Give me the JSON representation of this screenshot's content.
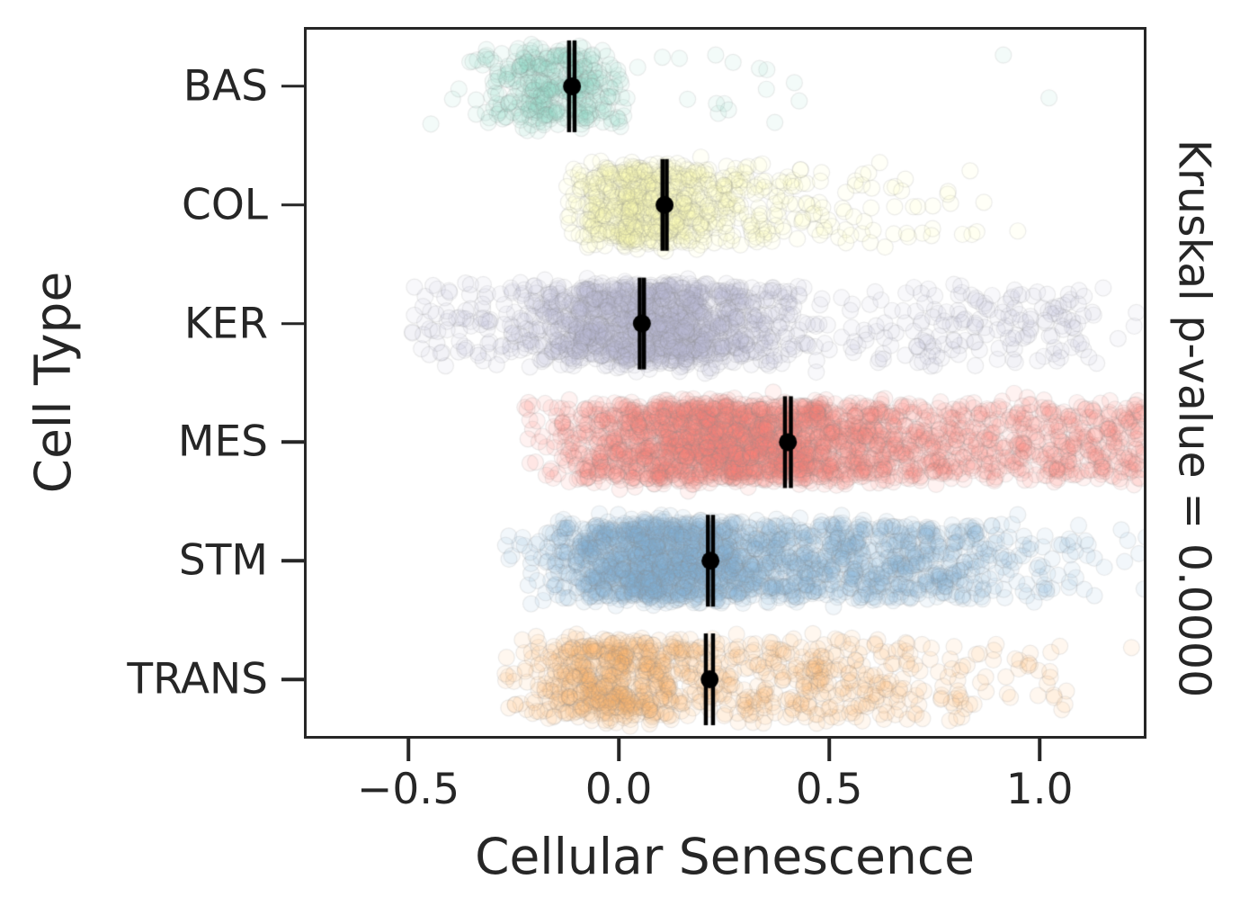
{
  "chart_data": {
    "type": "scatter",
    "subtype": "strip-plot-with-mean-ci",
    "orientation": "horizontal",
    "title": "",
    "xlabel": "Cellular Senescence",
    "ylabel": "Cell Type",
    "right_annotation": "Kruskal p-value = 0.0000",
    "xlim": [
      -0.748,
      1.254
    ],
    "grid": false,
    "legend": "none",
    "xticks": [
      {
        "value": -0.5,
        "label": "−0.5"
      },
      {
        "value": 0.0,
        "label": "0.0"
      },
      {
        "value": 0.5,
        "label": "0.5"
      },
      {
        "value": 1.0,
        "label": "1.0"
      }
    ],
    "categories": [
      "BAS",
      "COL",
      "KER",
      "MES",
      "STM",
      "TRANS"
    ],
    "point_style": {
      "radius": 9,
      "alpha": 0.1,
      "edge_color": "#888888",
      "edge_alpha": 0.16,
      "jitter_halfwidth": 42
    },
    "errorbar_style": {
      "color": "#000000",
      "cap_halfheight": 51,
      "cap_linewidth": 4.5,
      "line_width": 3.5,
      "marker_radius": 10
    },
    "series": [
      {
        "name": "BAS",
        "color": "#8dd3c7",
        "mean": -0.111,
        "ci": [
          -0.118,
          -0.105
        ],
        "n": 380,
        "clusters": [
          {
            "kind": "normal",
            "mu": -0.14,
            "sd": 0.105,
            "clip": [
              -0.47,
              0.02
            ],
            "w": 0.95
          },
          {
            "kind": "uniform",
            "a": 0.03,
            "b": 0.45,
            "w": 0.04
          },
          {
            "kind": "uniform",
            "a": 0.9,
            "b": 1.05,
            "w": 0.01
          }
        ]
      },
      {
        "name": "COL",
        "color": "#ffffb3",
        "mean": 0.109,
        "ci": [
          0.104,
          0.114
        ],
        "n": 800,
        "clusters": [
          {
            "kind": "normal",
            "mu": 0.07,
            "sd": 0.1,
            "clip": [
              -0.13,
              0.4
            ],
            "w": 0.78
          },
          {
            "kind": "normal",
            "mu": 0.38,
            "sd": 0.2,
            "clip": [
              0.08,
              0.95
            ],
            "w": 0.22
          }
        ]
      },
      {
        "name": "KER",
        "color": "#bebada",
        "mean": 0.055,
        "ci": [
          0.05,
          0.06
        ],
        "n": 1700,
        "clusters": [
          {
            "kind": "normal",
            "mu": 0.08,
            "sd": 0.16,
            "clip": [
              -0.42,
              0.78
            ],
            "w": 0.86
          },
          {
            "kind": "uniform",
            "a": -0.5,
            "b": -0.3,
            "w": 0.03
          },
          {
            "kind": "normal",
            "mu": 0.85,
            "sd": 0.22,
            "clip": [
              0.55,
              1.25
            ],
            "w": 0.11
          }
        ]
      },
      {
        "name": "MES",
        "color": "#fb8072",
        "mean": 0.402,
        "ci": [
          0.395,
          0.409
        ],
        "n": 2600,
        "clusters": [
          {
            "kind": "normal",
            "mu": 0.28,
            "sd": 0.2,
            "clip": [
              -0.18,
              1.25
            ],
            "w": 0.55
          },
          {
            "kind": "uniform",
            "a": -0.05,
            "b": 1.25,
            "w": 0.43
          },
          {
            "kind": "uniform",
            "a": -0.23,
            "b": -0.05,
            "w": 0.02
          }
        ]
      },
      {
        "name": "STM",
        "color": "#80b1d3",
        "mean": 0.218,
        "ci": [
          0.212,
          0.224
        ],
        "n": 2100,
        "clusters": [
          {
            "kind": "normal",
            "mu": 0.08,
            "sd": 0.13,
            "clip": [
              -0.35,
              1.25
            ],
            "w": 0.52
          },
          {
            "kind": "normal",
            "mu": 0.5,
            "sd": 0.3,
            "clip": [
              -0.1,
              1.27
            ],
            "w": 0.48
          }
        ]
      },
      {
        "name": "TRANS",
        "color": "#fdb462",
        "mean": 0.216,
        "ci": [
          0.207,
          0.224
        ],
        "n": 950,
        "clusters": [
          {
            "kind": "normal",
            "mu": -0.04,
            "sd": 0.095,
            "clip": [
              -0.27,
              0.22
            ],
            "w": 0.52
          },
          {
            "kind": "normal",
            "mu": 0.4,
            "sd": 0.3,
            "clip": [
              0.0,
              1.23
            ],
            "w": 0.48
          }
        ]
      }
    ]
  }
}
